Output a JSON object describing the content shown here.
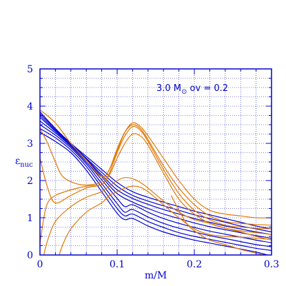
{
  "chart_data": {
    "type": "line",
    "title": "",
    "xlabel": "m/M",
    "ylabel_main": "ε",
    "ylabel_sub": "nuc",
    "annotation": {
      "prefix": "3.0 M",
      "sun_symbol": "⊙",
      "suffix": " ov = 0.2"
    },
    "xlim": [
      0,
      0.3
    ],
    "ylim": [
      0,
      5
    ],
    "x_ticks": [
      0,
      0.1,
      0.2,
      0.3
    ],
    "x_tick_labels": [
      "0",
      "0.1",
      "0.2",
      "0.3"
    ],
    "y_ticks": [
      0,
      1,
      2,
      3,
      4,
      5
    ],
    "y_tick_labels": [
      "0",
      "1",
      "2",
      "3",
      "4",
      "5"
    ],
    "grid": true,
    "colors": {
      "axis": "#0000cc",
      "grid": "#0000cc",
      "blue": "#0000cc",
      "orange": "#e07800"
    },
    "series": [
      {
        "color": "blue",
        "points": [
          [
            0,
            3.85
          ],
          [
            0.02,
            3.4
          ],
          [
            0.04,
            3.0
          ],
          [
            0.06,
            2.65
          ],
          [
            0.08,
            2.3
          ],
          [
            0.1,
            1.95
          ],
          [
            0.12,
            1.7
          ],
          [
            0.14,
            1.55
          ],
          [
            0.16,
            1.42
          ],
          [
            0.18,
            1.3
          ],
          [
            0.2,
            1.18
          ],
          [
            0.22,
            1.08
          ],
          [
            0.24,
            0.98
          ],
          [
            0.26,
            0.88
          ],
          [
            0.28,
            0.78
          ],
          [
            0.3,
            0.7
          ]
        ]
      },
      {
        "color": "blue",
        "points": [
          [
            0,
            3.8
          ],
          [
            0.02,
            3.38
          ],
          [
            0.04,
            3.0
          ],
          [
            0.06,
            2.6
          ],
          [
            0.08,
            2.22
          ],
          [
            0.1,
            1.85
          ],
          [
            0.12,
            1.6
          ],
          [
            0.14,
            1.45
          ],
          [
            0.16,
            1.32
          ],
          [
            0.18,
            1.2
          ],
          [
            0.2,
            1.08
          ],
          [
            0.22,
            0.98
          ],
          [
            0.24,
            0.88
          ],
          [
            0.26,
            0.78
          ],
          [
            0.28,
            0.7
          ],
          [
            0.3,
            0.62
          ]
        ]
      },
      {
        "color": "blue",
        "points": [
          [
            0,
            3.75
          ],
          [
            0.02,
            3.35
          ],
          [
            0.04,
            2.98
          ],
          [
            0.06,
            2.58
          ],
          [
            0.08,
            2.15
          ],
          [
            0.1,
            1.75
          ],
          [
            0.12,
            1.52
          ],
          [
            0.14,
            1.36
          ],
          [
            0.16,
            1.22
          ],
          [
            0.18,
            1.1
          ],
          [
            0.2,
            0.98
          ],
          [
            0.22,
            0.88
          ],
          [
            0.24,
            0.78
          ],
          [
            0.26,
            0.7
          ],
          [
            0.28,
            0.62
          ],
          [
            0.3,
            0.55
          ]
        ]
      },
      {
        "color": "blue",
        "points": [
          [
            0,
            3.7
          ],
          [
            0.02,
            3.32
          ],
          [
            0.04,
            2.95
          ],
          [
            0.06,
            2.55
          ],
          [
            0.08,
            2.1
          ],
          [
            0.1,
            1.65
          ],
          [
            0.12,
            1.42
          ],
          [
            0.14,
            1.25
          ],
          [
            0.16,
            1.1
          ],
          [
            0.18,
            0.98
          ],
          [
            0.2,
            0.86
          ],
          [
            0.22,
            0.76
          ],
          [
            0.24,
            0.68
          ],
          [
            0.26,
            0.6
          ],
          [
            0.28,
            0.52
          ],
          [
            0.3,
            0.45
          ]
        ]
      },
      {
        "color": "blue",
        "points": [
          [
            0,
            3.6
          ],
          [
            0.02,
            3.28
          ],
          [
            0.04,
            2.92
          ],
          [
            0.06,
            2.5
          ],
          [
            0.08,
            2.02
          ],
          [
            0.1,
            1.52
          ],
          [
            0.11,
            1.3
          ],
          [
            0.12,
            1.35
          ],
          [
            0.14,
            1.15
          ],
          [
            0.16,
            0.98
          ],
          [
            0.18,
            0.85
          ],
          [
            0.2,
            0.74
          ],
          [
            0.22,
            0.64
          ],
          [
            0.24,
            0.56
          ],
          [
            0.26,
            0.48
          ],
          [
            0.28,
            0.4
          ],
          [
            0.3,
            0.33
          ]
        ]
      },
      {
        "color": "blue",
        "points": [
          [
            0,
            3.5
          ],
          [
            0.02,
            3.22
          ],
          [
            0.04,
            2.88
          ],
          [
            0.06,
            2.45
          ],
          [
            0.08,
            1.92
          ],
          [
            0.1,
            1.38
          ],
          [
            0.11,
            1.15
          ],
          [
            0.12,
            1.22
          ],
          [
            0.14,
            1.02
          ],
          [
            0.16,
            0.85
          ],
          [
            0.18,
            0.72
          ],
          [
            0.2,
            0.62
          ],
          [
            0.22,
            0.52
          ],
          [
            0.24,
            0.44
          ],
          [
            0.26,
            0.36
          ],
          [
            0.28,
            0.28
          ],
          [
            0.3,
            0.22
          ]
        ]
      },
      {
        "color": "blue",
        "points": [
          [
            0,
            3.4
          ],
          [
            0.02,
            3.15
          ],
          [
            0.04,
            2.82
          ],
          [
            0.06,
            2.38
          ],
          [
            0.08,
            1.82
          ],
          [
            0.1,
            1.25
          ],
          [
            0.11,
            1.05
          ],
          [
            0.12,
            1.1
          ],
          [
            0.14,
            0.9
          ],
          [
            0.16,
            0.74
          ],
          [
            0.18,
            0.6
          ],
          [
            0.2,
            0.5
          ],
          [
            0.22,
            0.42
          ],
          [
            0.24,
            0.34
          ],
          [
            0.26,
            0.26
          ],
          [
            0.28,
            0.18
          ],
          [
            0.3,
            0.12
          ]
        ]
      },
      {
        "color": "blue",
        "points": [
          [
            0,
            3.3
          ],
          [
            0.02,
            3.05
          ],
          [
            0.04,
            2.75
          ],
          [
            0.06,
            2.28
          ],
          [
            0.08,
            1.7
          ],
          [
            0.1,
            1.12
          ],
          [
            0.11,
            0.95
          ],
          [
            0.12,
            0.98
          ],
          [
            0.14,
            0.78
          ],
          [
            0.16,
            0.62
          ],
          [
            0.18,
            0.5
          ],
          [
            0.2,
            0.4
          ],
          [
            0.22,
            0.32
          ],
          [
            0.24,
            0.24
          ],
          [
            0.26,
            0.16
          ],
          [
            0.28,
            0.08
          ],
          [
            0.295,
            0.0
          ]
        ]
      },
      {
        "color": "orange",
        "points": [
          [
            0,
            3.9
          ],
          [
            0.02,
            3.55
          ],
          [
            0.04,
            3.0
          ],
          [
            0.06,
            2.55
          ],
          [
            0.08,
            2.1
          ],
          [
            0.09,
            2.3
          ],
          [
            0.1,
            2.8
          ],
          [
            0.11,
            3.3
          ],
          [
            0.12,
            3.55
          ],
          [
            0.13,
            3.45
          ],
          [
            0.14,
            3.2
          ],
          [
            0.16,
            2.6
          ],
          [
            0.18,
            2.0
          ],
          [
            0.2,
            1.5
          ],
          [
            0.22,
            1.2
          ],
          [
            0.24,
            1.1
          ],
          [
            0.26,
            1.05
          ],
          [
            0.28,
            1.0
          ],
          [
            0.3,
            1.0
          ]
        ]
      },
      {
        "color": "orange",
        "points": [
          [
            0,
            3.4
          ],
          [
            0.01,
            3.0
          ],
          [
            0.02,
            2.5
          ],
          [
            0.03,
            2.1
          ],
          [
            0.05,
            1.9
          ],
          [
            0.07,
            1.9
          ],
          [
            0.08,
            2.0
          ],
          [
            0.09,
            2.3
          ],
          [
            0.1,
            2.85
          ],
          [
            0.11,
            3.3
          ],
          [
            0.12,
            3.5
          ],
          [
            0.13,
            3.4
          ],
          [
            0.14,
            3.1
          ],
          [
            0.16,
            2.4
          ],
          [
            0.18,
            1.8
          ],
          [
            0.2,
            1.35
          ],
          [
            0.22,
            1.05
          ],
          [
            0.24,
            0.9
          ],
          [
            0.26,
            0.85
          ],
          [
            0.28,
            0.82
          ],
          [
            0.3,
            0.8
          ]
        ]
      },
      {
        "color": "orange",
        "points": [
          [
            0,
            2.6
          ],
          [
            0.01,
            1.8
          ],
          [
            0.02,
            1.4
          ],
          [
            0.04,
            1.6
          ],
          [
            0.06,
            1.8
          ],
          [
            0.08,
            1.9
          ],
          [
            0.09,
            2.2
          ],
          [
            0.1,
            2.75
          ],
          [
            0.11,
            3.2
          ],
          [
            0.12,
            3.45
          ],
          [
            0.13,
            3.35
          ],
          [
            0.14,
            3.05
          ],
          [
            0.16,
            2.3
          ],
          [
            0.18,
            1.65
          ],
          [
            0.2,
            1.2
          ],
          [
            0.22,
            0.95
          ],
          [
            0.24,
            0.8
          ],
          [
            0.26,
            0.75
          ],
          [
            0.28,
            0.72
          ],
          [
            0.3,
            0.7
          ]
        ]
      },
      {
        "color": "orange",
        "points": [
          [
            0,
            0.3
          ],
          [
            0.005,
            1.0
          ],
          [
            0.01,
            1.4
          ],
          [
            0.02,
            1.6
          ],
          [
            0.04,
            1.75
          ],
          [
            0.06,
            1.85
          ],
          [
            0.08,
            1.9
          ],
          [
            0.09,
            2.15
          ],
          [
            0.1,
            2.6
          ],
          [
            0.11,
            3.0
          ],
          [
            0.12,
            3.25
          ],
          [
            0.13,
            3.2
          ],
          [
            0.14,
            2.95
          ],
          [
            0.16,
            2.2
          ],
          [
            0.18,
            1.5
          ],
          [
            0.2,
            1.1
          ],
          [
            0.22,
            0.85
          ],
          [
            0.24,
            0.72
          ],
          [
            0.26,
            0.65
          ],
          [
            0.28,
            0.6
          ],
          [
            0.3,
            0.55
          ]
        ]
      },
      {
        "color": "orange",
        "points": [
          [
            0.005,
            0.0
          ],
          [
            0.01,
            0.4
          ],
          [
            0.02,
            0.9
          ],
          [
            0.04,
            1.3
          ],
          [
            0.06,
            1.55
          ],
          [
            0.08,
            1.7
          ],
          [
            0.09,
            1.85
          ],
          [
            0.1,
            2.0
          ],
          [
            0.11,
            2.08
          ],
          [
            0.12,
            2.05
          ],
          [
            0.13,
            1.95
          ],
          [
            0.14,
            1.8
          ],
          [
            0.16,
            1.45
          ],
          [
            0.18,
            1.15
          ],
          [
            0.2,
            0.95
          ],
          [
            0.22,
            0.85
          ],
          [
            0.24,
            0.72
          ],
          [
            0.26,
            0.62
          ],
          [
            0.28,
            0.5
          ],
          [
            0.3,
            0.4
          ]
        ]
      },
      {
        "color": "orange",
        "points": [
          [
            0.025,
            0.0
          ],
          [
            0.03,
            0.3
          ],
          [
            0.04,
            0.7
          ],
          [
            0.06,
            1.15
          ],
          [
            0.08,
            1.4
          ],
          [
            0.09,
            1.6
          ],
          [
            0.1,
            1.7
          ],
          [
            0.11,
            1.8
          ],
          [
            0.12,
            1.85
          ],
          [
            0.13,
            1.82
          ],
          [
            0.14,
            1.7
          ],
          [
            0.16,
            1.35
          ],
          [
            0.18,
            1.0
          ],
          [
            0.2,
            0.7
          ],
          [
            0.22,
            0.55
          ],
          [
            0.24,
            0.5
          ],
          [
            0.26,
            0.48
          ],
          [
            0.28,
            0.45
          ],
          [
            0.3,
            0.42
          ]
        ]
      },
      {
        "color": "orange",
        "points": [
          [
            0.17,
            1.6
          ],
          [
            0.18,
            1.2
          ],
          [
            0.19,
            0.85
          ],
          [
            0.2,
            0.65
          ],
          [
            0.22,
            0.4
          ],
          [
            0.24,
            0.28
          ],
          [
            0.26,
            0.15
          ],
          [
            0.28,
            0.05
          ],
          [
            0.29,
            0.0
          ]
        ]
      }
    ]
  }
}
